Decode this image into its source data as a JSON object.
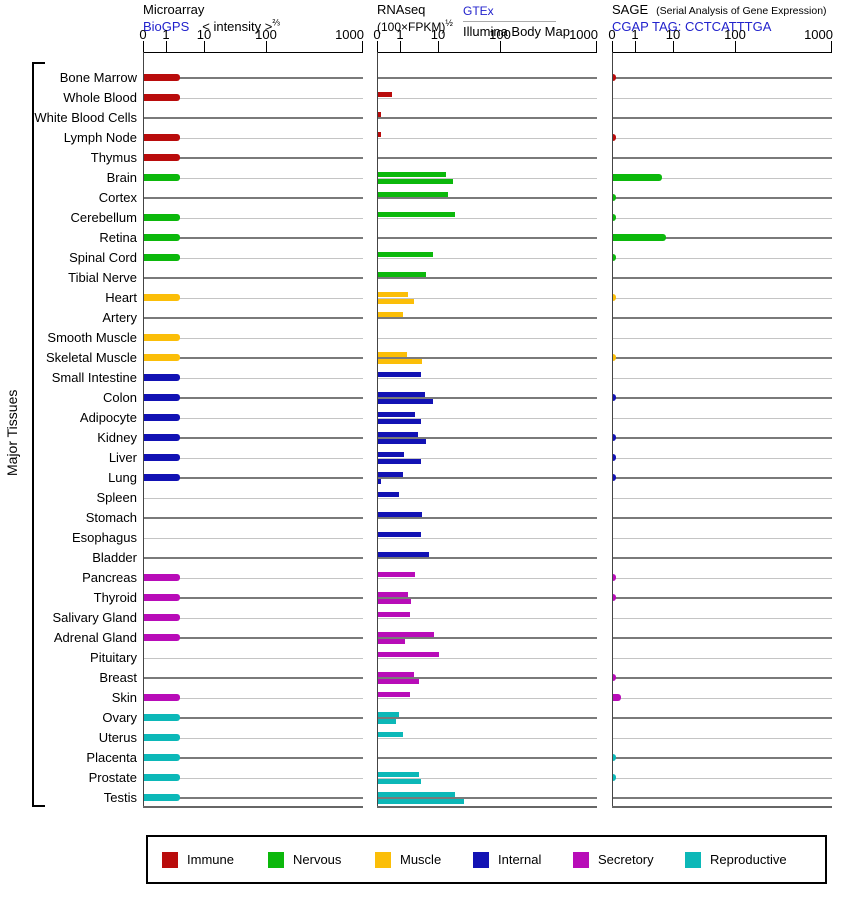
{
  "page": {
    "background": "#ffffff"
  },
  "left_axis": {
    "label": "Major Tissues"
  },
  "panels": [
    {
      "id": "microarray",
      "title": "Microarray",
      "link": "BioGPS",
      "scale_label": "< intensity >",
      "scale_exponent": "⅔",
      "ticks": [
        "0",
        "1",
        "10",
        "100",
        "1000"
      ]
    },
    {
      "id": "rnaseq",
      "title": "RNAseq",
      "unit": "(100×FPKM)",
      "unit_exponent": "½",
      "link": "GTEx",
      "link2": "Illumina Body Map",
      "ticks": [
        "0",
        "1",
        "10",
        "100",
        "1000"
      ]
    },
    {
      "id": "sage",
      "title": "SAGE",
      "subtitle": "(Serial Analysis of Gene Expression)",
      "link": "CGAP TAG: CCTCATTTGA",
      "ticks": [
        "0",
        "1",
        "10",
        "100",
        "1000"
      ]
    }
  ],
  "legend": [
    {
      "label": "Immune",
      "color": "#B90C0C"
    },
    {
      "label": "Nervous",
      "color": "#0CB80C"
    },
    {
      "label": "Muscle",
      "color": "#FBBE08"
    },
    {
      "label": "Internal",
      "color": "#1212B4"
    },
    {
      "label": "Secretory",
      "color": "#B80CB8"
    },
    {
      "label": "Reproductive",
      "color": "#0CB8B8"
    }
  ],
  "chart_data": {
    "type": "bar",
    "orientation": "horizontal",
    "x_ticks": [
      0,
      1,
      10,
      100,
      1000
    ],
    "x_scale_note": "compressed power-law axis (Microarray: intensity^(2/3); RNAseq: (100×FPKM)^(1/2); SAGE tag counts)",
    "series_names": [
      "Microarray BioGPS",
      "RNAseq GTEx",
      "RNAseq Illumina Body Map",
      "SAGE CGAP"
    ],
    "legend_title_by_category": [
      "Immune",
      "Nervous",
      "Muscle",
      "Internal",
      "Secretory",
      "Reproductive"
    ],
    "tissues": [
      {
        "name": "Bone Marrow",
        "category": "Immune",
        "microarray": 2.2,
        "rnaseq_gtex": null,
        "rnaseq_illumina": null,
        "sage": 0.1
      },
      {
        "name": "Whole Blood",
        "category": "Immune",
        "microarray": 2.2,
        "rnaseq_gtex": 0.6,
        "rnaseq_illumina": null,
        "sage": null
      },
      {
        "name": "White Blood Cells",
        "category": "Immune",
        "microarray": null,
        "rnaseq_gtex": 0.05,
        "rnaseq_illumina": null,
        "sage": null
      },
      {
        "name": "Lymph Node",
        "category": "Immune",
        "microarray": 2.2,
        "rnaseq_gtex": 0.05,
        "rnaseq_illumina": null,
        "sage": 0.1
      },
      {
        "name": "Thymus",
        "category": "Immune",
        "microarray": 2.2,
        "rnaseq_gtex": null,
        "rnaseq_illumina": null,
        "sage": null
      },
      {
        "name": "Brain",
        "category": "Nervous",
        "microarray": 2.2,
        "rnaseq_gtex": 13,
        "rnaseq_illumina": 17,
        "sage": 4.8
      },
      {
        "name": "Cortex",
        "category": "Nervous",
        "microarray": null,
        "rnaseq_gtex": 14,
        "rnaseq_illumina": null,
        "sage": 0.1
      },
      {
        "name": "Cerebellum",
        "category": "Nervous",
        "microarray": 2.2,
        "rnaseq_gtex": 18,
        "rnaseq_illumina": null,
        "sage": 0.1
      },
      {
        "name": "Retina",
        "category": "Nervous",
        "microarray": 2.2,
        "rnaseq_gtex": null,
        "rnaseq_illumina": null,
        "sage": 6
      },
      {
        "name": "Spinal Cord",
        "category": "Nervous",
        "microarray": 2.2,
        "rnaseq_gtex": 7,
        "rnaseq_illumina": null,
        "sage": 0.1
      },
      {
        "name": "Tibial Nerve",
        "category": "Nervous",
        "microarray": null,
        "rnaseq_gtex": 4.5,
        "rnaseq_illumina": null,
        "sage": null
      },
      {
        "name": "Heart",
        "category": "Muscle",
        "microarray": 2.2,
        "rnaseq_gtex": 1.5,
        "rnaseq_illumina": 2.2,
        "sage": 0.1
      },
      {
        "name": "Artery",
        "category": "Muscle",
        "microarray": null,
        "rnaseq_gtex": 1.1,
        "rnaseq_illumina": null,
        "sage": null
      },
      {
        "name": "Smooth Muscle",
        "category": "Muscle",
        "microarray": 2.2,
        "rnaseq_gtex": null,
        "rnaseq_illumina": null,
        "sage": null
      },
      {
        "name": "Skeletal Muscle",
        "category": "Muscle",
        "microarray": 2.2,
        "rnaseq_gtex": 1.4,
        "rnaseq_illumina": 3.6,
        "sage": 0.1
      },
      {
        "name": "Small Intestine",
        "category": "Internal",
        "microarray": 2.2,
        "rnaseq_gtex": 3.4,
        "rnaseq_illumina": null,
        "sage": null
      },
      {
        "name": "Colon",
        "category": "Internal",
        "microarray": 2.2,
        "rnaseq_gtex": 4.4,
        "rnaseq_illumina": 7,
        "sage": 0.1
      },
      {
        "name": "Adipocyte",
        "category": "Internal",
        "microarray": 2.2,
        "rnaseq_gtex": 2.3,
        "rnaseq_illumina": 3.4,
        "sage": null
      },
      {
        "name": "Kidney",
        "category": "Internal",
        "microarray": 2.2,
        "rnaseq_gtex": 2.8,
        "rnaseq_illumina": 4.5,
        "sage": 0.1
      },
      {
        "name": "Liver",
        "category": "Internal",
        "microarray": 2.2,
        "rnaseq_gtex": 1.2,
        "rnaseq_illumina": 3.4,
        "sage": 0.1
      },
      {
        "name": "Lung",
        "category": "Internal",
        "microarray": 2.2,
        "rnaseq_gtex": 1.1,
        "rnaseq_illumina": 0.05,
        "sage": 0.1
      },
      {
        "name": "Spleen",
        "category": "Internal",
        "microarray": null,
        "rnaseq_gtex": 0.9,
        "rnaseq_illumina": null,
        "sage": null
      },
      {
        "name": "Stomach",
        "category": "Internal",
        "microarray": null,
        "rnaseq_gtex": 3.5,
        "rnaseq_illumina": null,
        "sage": null
      },
      {
        "name": "Esophagus",
        "category": "Internal",
        "microarray": null,
        "rnaseq_gtex": 3.4,
        "rnaseq_illumina": null,
        "sage": null
      },
      {
        "name": "Bladder",
        "category": "Internal",
        "microarray": null,
        "rnaseq_gtex": 5.5,
        "rnaseq_illumina": null,
        "sage": null
      },
      {
        "name": "Pancreas",
        "category": "Secretory",
        "microarray": 2.2,
        "rnaseq_gtex": 2.3,
        "rnaseq_illumina": null,
        "sage": 0.1
      },
      {
        "name": "Thyroid",
        "category": "Secretory",
        "microarray": 2.2,
        "rnaseq_gtex": 1.5,
        "rnaseq_illumina": 1.8,
        "sage": 0.1
      },
      {
        "name": "Salivary Gland",
        "category": "Secretory",
        "microarray": 2.2,
        "rnaseq_gtex": 1.7,
        "rnaseq_illumina": null,
        "sage": null
      },
      {
        "name": "Adrenal Gland",
        "category": "Secretory",
        "microarray": 2.2,
        "rnaseq_gtex": 7.4,
        "rnaseq_illumina": 1.3,
        "sage": null
      },
      {
        "name": "Pituitary",
        "category": "Secretory",
        "microarray": null,
        "rnaseq_gtex": 10,
        "rnaseq_illumina": null,
        "sage": null
      },
      {
        "name": "Breast",
        "category": "Secretory",
        "microarray": null,
        "rnaseq_gtex": 2.2,
        "rnaseq_illumina": 2.9,
        "sage": 0.1
      },
      {
        "name": "Skin",
        "category": "Secretory",
        "microarray": 2.2,
        "rnaseq_gtex": 1.7,
        "rnaseq_illumina": null,
        "sage": 0.35
      },
      {
        "name": "Ovary",
        "category": "Reproductive",
        "microarray": 2.2,
        "rnaseq_gtex": 0.9,
        "rnaseq_illumina": 0.8,
        "sage": null
      },
      {
        "name": "Uterus",
        "category": "Reproductive",
        "microarray": 2.2,
        "rnaseq_gtex": 1.1,
        "rnaseq_illumina": null,
        "sage": null
      },
      {
        "name": "Placenta",
        "category": "Reproductive",
        "microarray": 2.2,
        "rnaseq_gtex": null,
        "rnaseq_illumina": null,
        "sage": 0.1
      },
      {
        "name": "Prostate",
        "category": "Reproductive",
        "microarray": 2.2,
        "rnaseq_gtex": 2.9,
        "rnaseq_illumina": 3.3,
        "sage": 0.1
      },
      {
        "name": "Testis",
        "category": "Reproductive",
        "microarray": 2.2,
        "rnaseq_gtex": 18,
        "rnaseq_illumina": 25,
        "sage": null
      }
    ]
  }
}
